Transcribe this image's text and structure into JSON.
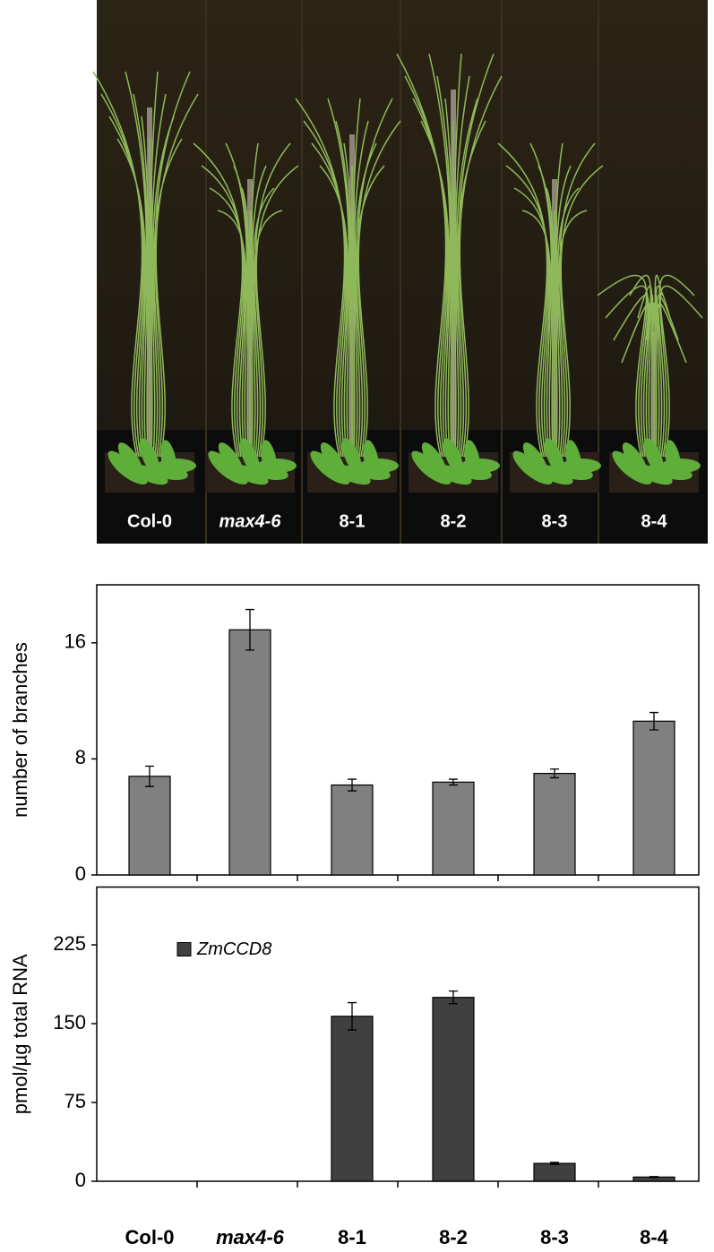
{
  "photo": {
    "labels": [
      "Col-0",
      "max4-6",
      "8-1",
      "8-2",
      "8-3",
      "8-4"
    ]
  },
  "chart_data": [
    {
      "type": "bar",
      "ylabel": "number of branches",
      "categories": [
        null,
        null,
        null,
        null,
        null,
        null
      ],
      "series": [
        {
          "color": "#808080",
          "values": [
            6.8,
            16.9,
            6.2,
            6.4,
            7.0,
            10.6
          ],
          "errors": [
            0.7,
            1.4,
            0.4,
            0.2,
            0.3,
            0.6
          ]
        }
      ],
      "ylim": [
        0,
        20
      ],
      "yticks": [
        0,
        8,
        16
      ],
      "grid": false
    },
    {
      "type": "bar",
      "ylabel": "pmol/µg total RNA",
      "categories": [
        "Col-0",
        "max4-6",
        "8-1",
        "8-2",
        "8-3",
        "8-4"
      ],
      "series": [
        {
          "name": "ZmCCD8",
          "color": "#404040",
          "values": [
            0,
            0,
            157,
            175,
            17,
            4
          ],
          "errors": [
            0,
            0,
            13,
            6,
            1,
            0.5
          ]
        }
      ],
      "ylim": [
        0,
        280
      ],
      "yticks": [
        0,
        75,
        150,
        225
      ],
      "grid": false,
      "legend": "upper-left"
    }
  ]
}
